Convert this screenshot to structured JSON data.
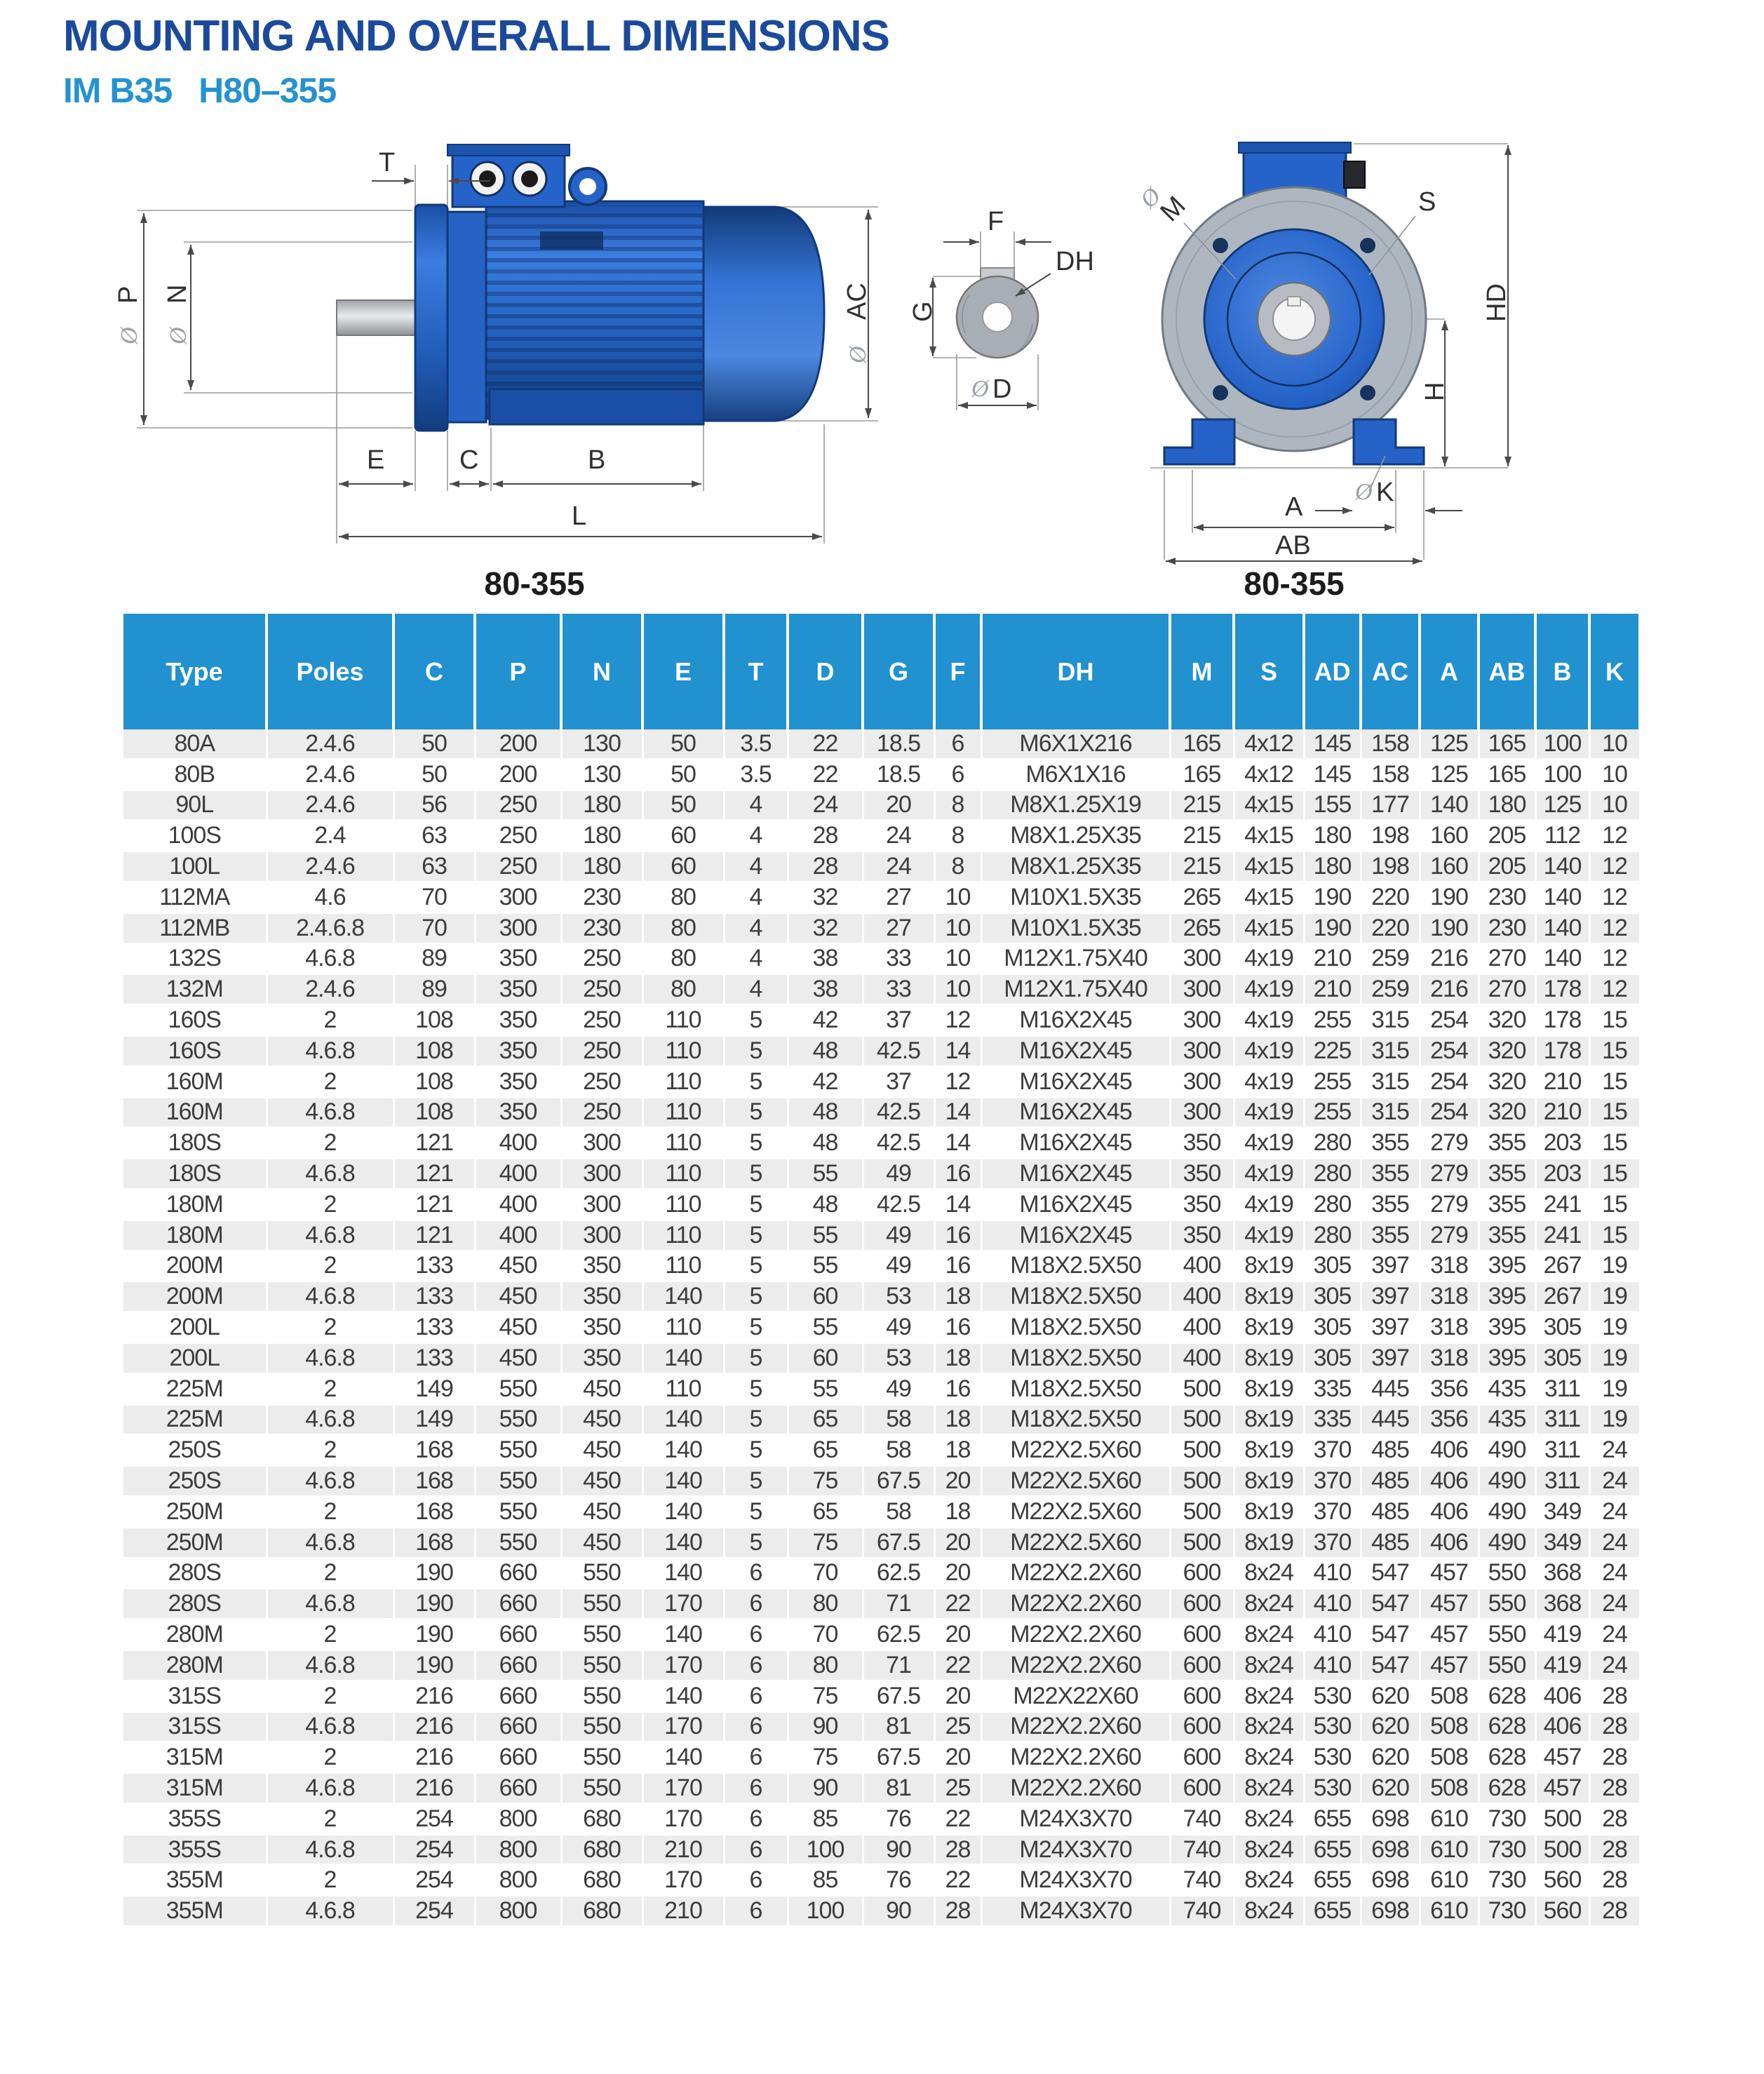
{
  "page": {
    "title": "MOUNTING AND OVERALL DIMENSIONS",
    "subtitle_left": "IM B35",
    "subtitle_right": "H80–355"
  },
  "colors": {
    "title_navy": "#1b4a9b",
    "subtitle_blue": "#2492d2",
    "table_header_blue": "#2191d0",
    "row_alt_gray": "#ececec",
    "motor_blue": "#2663c8"
  },
  "drawings": {
    "phi": "Ø",
    "caption_left": "80-355",
    "caption_right": "80-355",
    "side": {
      "t": "T",
      "p": "P",
      "n": "N",
      "ac": "AC",
      "e": "E",
      "c": "C",
      "b": "B",
      "l": "L"
    },
    "section": {
      "f": "F",
      "dh": "DH",
      "g": "G",
      "d": "D"
    },
    "front": {
      "m": "M",
      "s": "S",
      "hd": "HD",
      "h": "H",
      "k": "K",
      "a": "A",
      "ab": "AB"
    }
  },
  "table": {
    "columns": [
      "Type",
      "Poles",
      "C",
      "P",
      "N",
      "E",
      "T",
      "D",
      "G",
      "F",
      "DH",
      "M",
      "S",
      "AD",
      "AC",
      "A",
      "AB",
      "B",
      "K"
    ],
    "rows": [
      [
        "80A",
        "2.4.6",
        "50",
        "200",
        "130",
        "50",
        "3.5",
        "22",
        "18.5",
        "6",
        "M6X1X216",
        "165",
        "4x12",
        "145",
        "158",
        "125",
        "165",
        "100",
        "10"
      ],
      [
        "80B",
        "2.4.6",
        "50",
        "200",
        "130",
        "50",
        "3.5",
        "22",
        "18.5",
        "6",
        "M6X1X16",
        "165",
        "4x12",
        "145",
        "158",
        "125",
        "165",
        "100",
        "10"
      ],
      [
        "90L",
        "2.4.6",
        "56",
        "250",
        "180",
        "50",
        "4",
        "24",
        "20",
        "8",
        "M8X1.25X19",
        "215",
        "4x15",
        "155",
        "177",
        "140",
        "180",
        "125",
        "10"
      ],
      [
        "100S",
        "2.4",
        "63",
        "250",
        "180",
        "60",
        "4",
        "28",
        "24",
        "8",
        "M8X1.25X35",
        "215",
        "4x15",
        "180",
        "198",
        "160",
        "205",
        "112",
        "12"
      ],
      [
        "100L",
        "2.4.6",
        "63",
        "250",
        "180",
        "60",
        "4",
        "28",
        "24",
        "8",
        "M8X1.25X35",
        "215",
        "4x15",
        "180",
        "198",
        "160",
        "205",
        "140",
        "12"
      ],
      [
        "112MA",
        "4.6",
        "70",
        "300",
        "230",
        "80",
        "4",
        "32",
        "27",
        "10",
        "M10X1.5X35",
        "265",
        "4x15",
        "190",
        "220",
        "190",
        "230",
        "140",
        "12"
      ],
      [
        "112MB",
        "2.4.6.8",
        "70",
        "300",
        "230",
        "80",
        "4",
        "32",
        "27",
        "10",
        "M10X1.5X35",
        "265",
        "4x15",
        "190",
        "220",
        "190",
        "230",
        "140",
        "12"
      ],
      [
        "132S",
        "4.6.8",
        "89",
        "350",
        "250",
        "80",
        "4",
        "38",
        "33",
        "10",
        "M12X1.75X40",
        "300",
        "4x19",
        "210",
        "259",
        "216",
        "270",
        "140",
        "12"
      ],
      [
        "132M",
        "2.4.6",
        "89",
        "350",
        "250",
        "80",
        "4",
        "38",
        "33",
        "10",
        "M12X1.75X40",
        "300",
        "4x19",
        "210",
        "259",
        "216",
        "270",
        "178",
        "12"
      ],
      [
        "160S",
        "2",
        "108",
        "350",
        "250",
        "110",
        "5",
        "42",
        "37",
        "12",
        "M16X2X45",
        "300",
        "4x19",
        "255",
        "315",
        "254",
        "320",
        "178",
        "15"
      ],
      [
        "160S",
        "4.6.8",
        "108",
        "350",
        "250",
        "110",
        "5",
        "48",
        "42.5",
        "14",
        "M16X2X45",
        "300",
        "4x19",
        "225",
        "315",
        "254",
        "320",
        "178",
        "15"
      ],
      [
        "160M",
        "2",
        "108",
        "350",
        "250",
        "110",
        "5",
        "42",
        "37",
        "12",
        "M16X2X45",
        "300",
        "4x19",
        "255",
        "315",
        "254",
        "320",
        "210",
        "15"
      ],
      [
        "160M",
        "4.6.8",
        "108",
        "350",
        "250",
        "110",
        "5",
        "48",
        "42.5",
        "14",
        "M16X2X45",
        "300",
        "4x19",
        "255",
        "315",
        "254",
        "320",
        "210",
        "15"
      ],
      [
        "180S",
        "2",
        "121",
        "400",
        "300",
        "110",
        "5",
        "48",
        "42.5",
        "14",
        "M16X2X45",
        "350",
        "4x19",
        "280",
        "355",
        "279",
        "355",
        "203",
        "15"
      ],
      [
        "180S",
        "4.6.8",
        "121",
        "400",
        "300",
        "110",
        "5",
        "55",
        "49",
        "16",
        "M16X2X45",
        "350",
        "4x19",
        "280",
        "355",
        "279",
        "355",
        "203",
        "15"
      ],
      [
        "180M",
        "2",
        "121",
        "400",
        "300",
        "110",
        "5",
        "48",
        "42.5",
        "14",
        "M16X2X45",
        "350",
        "4x19",
        "280",
        "355",
        "279",
        "355",
        "241",
        "15"
      ],
      [
        "180M",
        "4.6.8",
        "121",
        "400",
        "300",
        "110",
        "5",
        "55",
        "49",
        "16",
        "M16X2X45",
        "350",
        "4x19",
        "280",
        "355",
        "279",
        "355",
        "241",
        "15"
      ],
      [
        "200M",
        "2",
        "133",
        "450",
        "350",
        "110",
        "5",
        "55",
        "49",
        "16",
        "M18X2.5X50",
        "400",
        "8x19",
        "305",
        "397",
        "318",
        "395",
        "267",
        "19"
      ],
      [
        "200M",
        "4.6.8",
        "133",
        "450",
        "350",
        "140",
        "5",
        "60",
        "53",
        "18",
        "M18X2.5X50",
        "400",
        "8x19",
        "305",
        "397",
        "318",
        "395",
        "267",
        "19"
      ],
      [
        "200L",
        "2",
        "133",
        "450",
        "350",
        "110",
        "5",
        "55",
        "49",
        "16",
        "M18X2.5X50",
        "400",
        "8x19",
        "305",
        "397",
        "318",
        "395",
        "305",
        "19"
      ],
      [
        "200L",
        "4.6.8",
        "133",
        "450",
        "350",
        "140",
        "5",
        "60",
        "53",
        "18",
        "M18X2.5X50",
        "400",
        "8x19",
        "305",
        "397",
        "318",
        "395",
        "305",
        "19"
      ],
      [
        "225M",
        "2",
        "149",
        "550",
        "450",
        "110",
        "5",
        "55",
        "49",
        "16",
        "M18X2.5X50",
        "500",
        "8x19",
        "335",
        "445",
        "356",
        "435",
        "311",
        "19"
      ],
      [
        "225M",
        "4.6.8",
        "149",
        "550",
        "450",
        "140",
        "5",
        "65",
        "58",
        "18",
        "M18X2.5X50",
        "500",
        "8x19",
        "335",
        "445",
        "356",
        "435",
        "311",
        "19"
      ],
      [
        "250S",
        "2",
        "168",
        "550",
        "450",
        "140",
        "5",
        "65",
        "58",
        "18",
        "M22X2.5X60",
        "500",
        "8x19",
        "370",
        "485",
        "406",
        "490",
        "311",
        "24"
      ],
      [
        "250S",
        "4.6.8",
        "168",
        "550",
        "450",
        "140",
        "5",
        "75",
        "67.5",
        "20",
        "M22X2.5X60",
        "500",
        "8x19",
        "370",
        "485",
        "406",
        "490",
        "311",
        "24"
      ],
      [
        "250M",
        "2",
        "168",
        "550",
        "450",
        "140",
        "5",
        "65",
        "58",
        "18",
        "M22X2.5X60",
        "500",
        "8x19",
        "370",
        "485",
        "406",
        "490",
        "349",
        "24"
      ],
      [
        "250M",
        "4.6.8",
        "168",
        "550",
        "450",
        "140",
        "5",
        "75",
        "67.5",
        "20",
        "M22X2.5X60",
        "500",
        "8x19",
        "370",
        "485",
        "406",
        "490",
        "349",
        "24"
      ],
      [
        "280S",
        "2",
        "190",
        "660",
        "550",
        "140",
        "6",
        "70",
        "62.5",
        "20",
        "M22X2.2X60",
        "600",
        "8x24",
        "410",
        "547",
        "457",
        "550",
        "368",
        "24"
      ],
      [
        "280S",
        "4.6.8",
        "190",
        "660",
        "550",
        "170",
        "6",
        "80",
        "71",
        "22",
        "M22X2.2X60",
        "600",
        "8x24",
        "410",
        "547",
        "457",
        "550",
        "368",
        "24"
      ],
      [
        "280M",
        "2",
        "190",
        "660",
        "550",
        "140",
        "6",
        "70",
        "62.5",
        "20",
        "M22X2.2X60",
        "600",
        "8x24",
        "410",
        "547",
        "457",
        "550",
        "419",
        "24"
      ],
      [
        "280M",
        "4.6.8",
        "190",
        "660",
        "550",
        "170",
        "6",
        "80",
        "71",
        "22",
        "M22X2.2X60",
        "600",
        "8x24",
        "410",
        "547",
        "457",
        "550",
        "419",
        "24"
      ],
      [
        "315S",
        "2",
        "216",
        "660",
        "550",
        "140",
        "6",
        "75",
        "67.5",
        "20",
        "M22X22X60",
        "600",
        "8x24",
        "530",
        "620",
        "508",
        "628",
        "406",
        "28"
      ],
      [
        "315S",
        "4.6.8",
        "216",
        "660",
        "550",
        "170",
        "6",
        "90",
        "81",
        "25",
        "M22X2.2X60",
        "600",
        "8x24",
        "530",
        "620",
        "508",
        "628",
        "406",
        "28"
      ],
      [
        "315M",
        "2",
        "216",
        "660",
        "550",
        "140",
        "6",
        "75",
        "67.5",
        "20",
        "M22X2.2X60",
        "600",
        "8x24",
        "530",
        "620",
        "508",
        "628",
        "457",
        "28"
      ],
      [
        "315M",
        "4.6.8",
        "216",
        "660",
        "550",
        "170",
        "6",
        "90",
        "81",
        "25",
        "M22X2.2X60",
        "600",
        "8x24",
        "530",
        "620",
        "508",
        "628",
        "457",
        "28"
      ],
      [
        "355S",
        "2",
        "254",
        "800",
        "680",
        "170",
        "6",
        "85",
        "76",
        "22",
        "M24X3X70",
        "740",
        "8x24",
        "655",
        "698",
        "610",
        "730",
        "500",
        "28"
      ],
      [
        "355S",
        "4.6.8",
        "254",
        "800",
        "680",
        "210",
        "6",
        "100",
        "90",
        "28",
        "M24X3X70",
        "740",
        "8x24",
        "655",
        "698",
        "610",
        "730",
        "500",
        "28"
      ],
      [
        "355M",
        "2",
        "254",
        "800",
        "680",
        "170",
        "6",
        "85",
        "76",
        "22",
        "M24X3X70",
        "740",
        "8x24",
        "655",
        "698",
        "610",
        "730",
        "560",
        "28"
      ],
      [
        "355M",
        "4.6.8",
        "254",
        "800",
        "680",
        "210",
        "6",
        "100",
        "90",
        "28",
        "M24X3X70",
        "740",
        "8x24",
        "655",
        "698",
        "610",
        "730",
        "560",
        "28"
      ]
    ]
  }
}
